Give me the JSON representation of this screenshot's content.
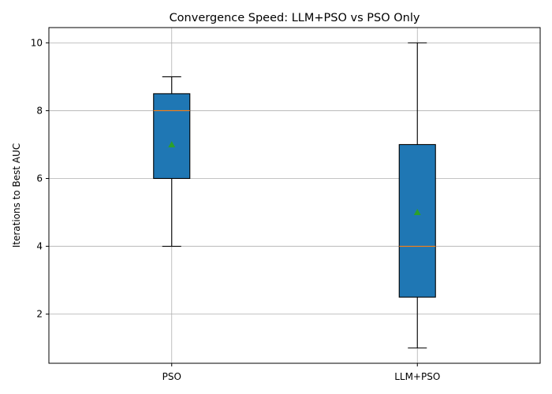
{
  "chart_data": {
    "type": "box",
    "title": "Convergence Speed: LLM+PSO vs PSO Only",
    "xlabel": "",
    "ylabel": "Iterations to Best AUC",
    "categories": [
      "PSO",
      "LLM+PSO"
    ],
    "boxes": [
      {
        "name": "PSO",
        "whisker_low": 4,
        "q1": 6,
        "median": 8,
        "q3": 8.5,
        "whisker_high": 9,
        "mean": 7
      },
      {
        "name": "LLM+PSO",
        "whisker_low": 1,
        "q1": 2.5,
        "median": 4,
        "q3": 7,
        "whisker_high": 10,
        "mean": 5
      }
    ],
    "yticks": [
      2,
      4,
      6,
      8,
      10
    ],
    "ylim": [
      0.55,
      10.45
    ],
    "grid": true,
    "colors": {
      "box_fill": "#1f77b4",
      "median_line": "#ff7f0e",
      "mean_marker": "#2ca02c",
      "grid": "#b0b0b0"
    }
  }
}
